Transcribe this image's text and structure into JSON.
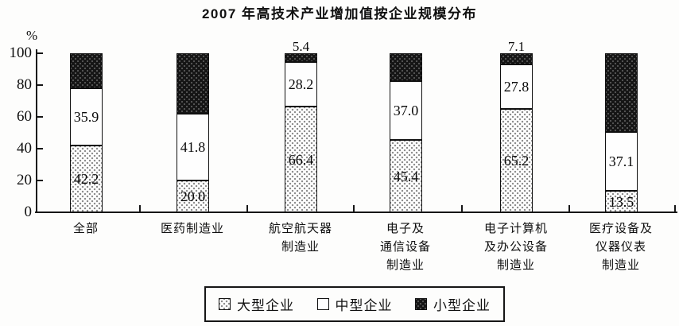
{
  "title": "2007 年高技术产业增加值按企业规模分布",
  "y_axis": {
    "unit_label": "%",
    "ticks": [
      100,
      80,
      60,
      40,
      20,
      0
    ]
  },
  "legend": {
    "items": [
      {
        "label": "大型企业",
        "pattern": "dots",
        "swatch_icon": "dotted-pattern-swatch"
      },
      {
        "label": "中型企业",
        "pattern": "plain",
        "swatch_icon": "white-pattern-swatch"
      },
      {
        "label": "小型企业",
        "pattern": "dark",
        "swatch_icon": "dark-pattern-swatch"
      }
    ]
  },
  "colors": {
    "ink": "#111111",
    "paper": "#fdfdfc",
    "dark_fill": "#151515",
    "dot_fill": "#8f8f8f"
  },
  "chart_data": {
    "type": "bar",
    "stacked": true,
    "orientation": "vertical",
    "title": "2007 年高技术产业增加值按企业规模分布",
    "xlabel": "",
    "ylabel": "%",
    "ylim": [
      0,
      100
    ],
    "grid": false,
    "legend_position": "bottom",
    "categories": [
      "全部",
      "医药制造业",
      "航空航天器制造业",
      "电子及通信设备制造业",
      "电子计算机及办公设备制造业",
      "医疗设备及仪器仪表制造业"
    ],
    "category_lines": [
      [
        "全部"
      ],
      [
        "医药制造业"
      ],
      [
        "航空航天器",
        "制造业"
      ],
      [
        "电子及",
        "通信设备",
        "制造业"
      ],
      [
        "电子计算机",
        "及办公设备",
        "制造业"
      ],
      [
        "医疗设备及",
        "仪器仪表",
        "制造业"
      ]
    ],
    "series": [
      {
        "name": "大型企业",
        "values": [
          42.2,
          20.0,
          66.4,
          45.4,
          65.2,
          13.5
        ],
        "shown_labels": [
          "42.2",
          "20.0",
          "66.4",
          "45.4",
          "65.2",
          "13.5"
        ]
      },
      {
        "name": "中型企业",
        "values": [
          35.9,
          41.8,
          28.2,
          37.0,
          27.8,
          37.1
        ],
        "shown_labels": [
          "35.9",
          "41.8",
          "28.2",
          "37.0",
          "27.8",
          "37.1"
        ]
      },
      {
        "name": "小型企业",
        "values": [
          21.9,
          38.2,
          5.4,
          17.6,
          7.1,
          49.4
        ],
        "shown_labels": [
          "",
          "",
          "5.4",
          "",
          "7.1",
          ""
        ]
      }
    ]
  }
}
